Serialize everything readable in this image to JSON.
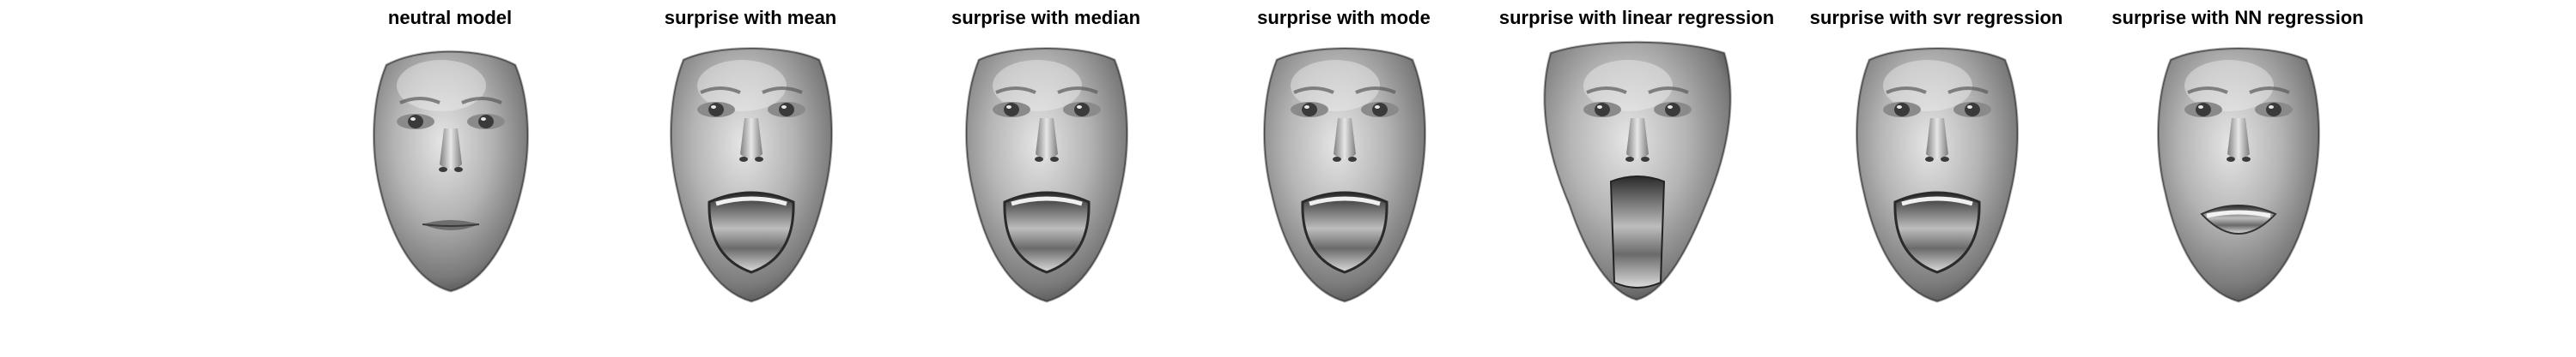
{
  "figure": {
    "panels": [
      {
        "title": "neutral model",
        "expression": "neutral",
        "mouth_open": false
      },
      {
        "title": "surprise with mean",
        "expression": "surprise",
        "mouth_open": true
      },
      {
        "title": "surprise with median",
        "expression": "surprise",
        "mouth_open": true
      },
      {
        "title": "surprise with mode",
        "expression": "surprise",
        "mouth_open": true
      },
      {
        "title": "surprise with linear regression",
        "expression": "surprise-distorted",
        "mouth_open": true
      },
      {
        "title": "surprise with svr regression",
        "expression": "surprise",
        "mouth_open": true
      },
      {
        "title": "surprise with NN regression",
        "expression": "surprise-mild",
        "mouth_open": true
      }
    ],
    "colors": {
      "background": "#ffffff",
      "title": "#000000",
      "face_light": "#d9d9d9",
      "face_mid": "#9a9a9a",
      "face_dark": "#3a3a3a"
    }
  }
}
